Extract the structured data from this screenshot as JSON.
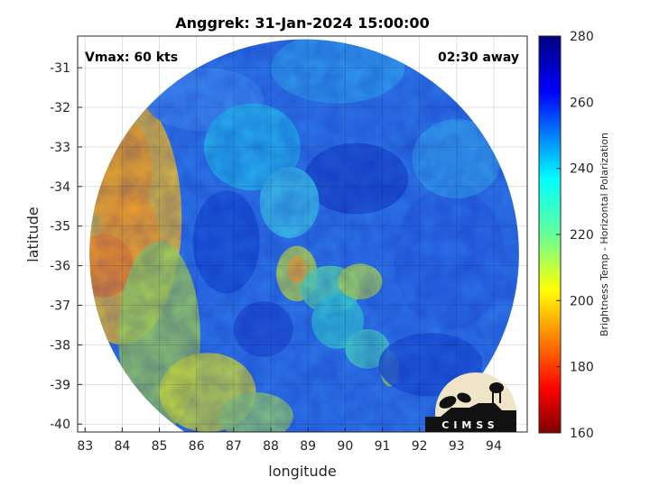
{
  "chart_data": {
    "type": "heatmap",
    "title": "Anggrek: 31-Jan-2024 15:00:00",
    "xlabel": "longitude",
    "ylabel": "latitude",
    "xlim": [
      82.8,
      94.9
    ],
    "ylim": [
      -40.2,
      -30.2
    ],
    "xticks": [
      "83",
      "84",
      "85",
      "86",
      "87",
      "88",
      "89",
      "90",
      "91",
      "92",
      "93",
      "94"
    ],
    "yticks": [
      "-31",
      "-32",
      "-33",
      "-34",
      "-35",
      "-36",
      "-37",
      "-38",
      "-39",
      "-40"
    ],
    "grid": true,
    "annotations": {
      "vmax": "Vmax: 60 kts",
      "time_away": "02:30 away"
    },
    "colorbar": {
      "label": "Brightness Temp - Horizontal Polarization",
      "range": [
        160,
        280
      ],
      "ticks": [
        "160",
        "180",
        "200",
        "220",
        "240",
        "260",
        "280"
      ],
      "colormap": "jet"
    },
    "swath": {
      "center": {
        "lon": 88.9,
        "lat": -35.7
      },
      "radius_deg": 5.5
    },
    "logo": {
      "text": "CIMSS"
    }
  }
}
